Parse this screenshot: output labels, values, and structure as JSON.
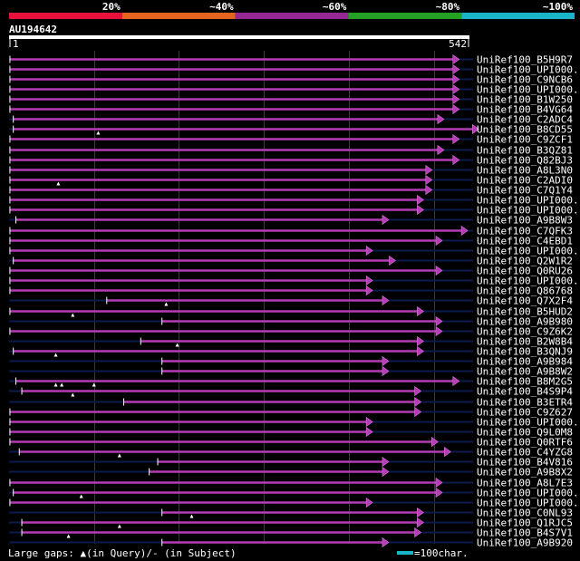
{
  "scale_labels": [
    "20%",
    "~40%",
    "~60%",
    "~80%",
    "~100%"
  ],
  "scale_colors": [
    "#e8103c",
    "#e2641e",
    "#962896",
    "#24a024",
    "#1ab4c8"
  ],
  "query": {
    "id": "AU194642",
    "start": "1",
    "end": "542",
    "length": 542
  },
  "hits": [
    {
      "name": "UniRef100_B5H9R7",
      "start": 1,
      "end": 530,
      "gaps": []
    },
    {
      "name": "UniRef100_UPI000...",
      "start": 1,
      "end": 530,
      "gaps": []
    },
    {
      "name": "UniRef100_C9NCB6",
      "start": 1,
      "end": 530,
      "gaps": []
    },
    {
      "name": "UniRef100_UPI000...",
      "start": 1,
      "end": 530,
      "gaps": []
    },
    {
      "name": "UniRef100_B1W250",
      "start": 1,
      "end": 530,
      "gaps": []
    },
    {
      "name": "UniRef100_B4VG64",
      "start": 1,
      "end": 530,
      "gaps": []
    },
    {
      "name": "UniRef100_C2ADC4",
      "start": 5,
      "end": 512,
      "gaps": []
    },
    {
      "name": "UniRef100_B8CD55",
      "start": 5,
      "end": 553,
      "gaps": [
        105
      ]
    },
    {
      "name": "UniRef100_C9ZCF1",
      "start": 1,
      "end": 530,
      "gaps": []
    },
    {
      "name": "UniRef100_B3QZ81",
      "start": 1,
      "end": 512,
      "gaps": []
    },
    {
      "name": "UniRef100_Q82BJ3",
      "start": 1,
      "end": 530,
      "gaps": []
    },
    {
      "name": "UniRef100_A8L3N0",
      "start": 1,
      "end": 498,
      "gaps": []
    },
    {
      "name": "UniRef100_C2ADI0",
      "start": 1,
      "end": 498,
      "gaps": [
        58
      ]
    },
    {
      "name": "UniRef100_C7Q1Y4",
      "start": 1,
      "end": 498,
      "gaps": []
    },
    {
      "name": "UniRef100_UPI000...",
      "start": 1,
      "end": 488,
      "gaps": []
    },
    {
      "name": "UniRef100_UPI000...",
      "start": 1,
      "end": 488,
      "gaps": []
    },
    {
      "name": "UniRef100_A9B8W3",
      "start": 8,
      "end": 447,
      "gaps": []
    },
    {
      "name": "UniRef100_C7QFK3",
      "start": 1,
      "end": 540,
      "gaps": []
    },
    {
      "name": "UniRef100_C4EBD1",
      "start": 1,
      "end": 510,
      "gaps": []
    },
    {
      "name": "UniRef100_UPI000...",
      "start": 1,
      "end": 428,
      "gaps": []
    },
    {
      "name": "UniRef100_Q2W1R2",
      "start": 5,
      "end": 455,
      "gaps": []
    },
    {
      "name": "UniRef100_Q0RU26",
      "start": 1,
      "end": 510,
      "gaps": []
    },
    {
      "name": "UniRef100_UPI000...",
      "start": 1,
      "end": 428,
      "gaps": []
    },
    {
      "name": "UniRef100_Q86768",
      "start": 1,
      "end": 428,
      "gaps": []
    },
    {
      "name": "UniRef100_Q7X2F4",
      "start": 115,
      "end": 447,
      "gaps": [
        185
      ]
    },
    {
      "name": "UniRef100_B5HUD2",
      "start": 1,
      "end": 488,
      "gaps": [
        75
      ]
    },
    {
      "name": "UniRef100_A9B980",
      "start": 180,
      "end": 510,
      "gaps": []
    },
    {
      "name": "UniRef100_C9Z6K2",
      "start": 1,
      "end": 510,
      "gaps": []
    },
    {
      "name": "UniRef100_B2W8B4",
      "start": 155,
      "end": 488,
      "gaps": [
        198
      ]
    },
    {
      "name": "UniRef100_B3QNJ9",
      "start": 5,
      "end": 488,
      "gaps": [
        55
      ]
    },
    {
      "name": "UniRef100_A9B984",
      "start": 180,
      "end": 447,
      "gaps": []
    },
    {
      "name": "UniRef100_A9B8W2",
      "start": 180,
      "end": 447,
      "gaps": []
    },
    {
      "name": "UniRef100_B8M2G5",
      "start": 8,
      "end": 530,
      "gaps": [
        55,
        62,
        100
      ]
    },
    {
      "name": "UniRef100_B4S9P4",
      "start": 15,
      "end": 485,
      "gaps": [
        75
      ]
    },
    {
      "name": "UniRef100_B3ETR4",
      "start": 135,
      "end": 485,
      "gaps": []
    },
    {
      "name": "UniRef100_C9Z627",
      "start": 1,
      "end": 485,
      "gaps": []
    },
    {
      "name": "UniRef100_UPI000...",
      "start": 1,
      "end": 428,
      "gaps": []
    },
    {
      "name": "UniRef100_Q9L0M8",
      "start": 1,
      "end": 428,
      "gaps": []
    },
    {
      "name": "UniRef100_Q0RTF6",
      "start": 1,
      "end": 505,
      "gaps": []
    },
    {
      "name": "UniRef100_C4YZG8",
      "start": 12,
      "end": 520,
      "gaps": [
        130
      ]
    },
    {
      "name": "UniRef100_B4V816",
      "start": 175,
      "end": 447,
      "gaps": []
    },
    {
      "name": "UniRef100_A9B8X2",
      "start": 165,
      "end": 447,
      "gaps": []
    },
    {
      "name": "UniRef100_A8L7E3",
      "start": 1,
      "end": 510,
      "gaps": []
    },
    {
      "name": "UniRef100_UPI000...",
      "start": 5,
      "end": 510,
      "gaps": [
        85
      ]
    },
    {
      "name": "UniRef100_UPI000...",
      "start": 1,
      "end": 428,
      "gaps": []
    },
    {
      "name": "UniRef100_C0NL93",
      "start": 180,
      "end": 488,
      "gaps": [
        215
      ]
    },
    {
      "name": "UniRef100_Q1RJC5",
      "start": 15,
      "end": 488,
      "gaps": [
        130
      ]
    },
    {
      "name": "UniRef100_B4S7V1",
      "start": 15,
      "end": 485,
      "gaps": [
        70
      ]
    },
    {
      "name": "UniRef100_A9B920",
      "start": 180,
      "end": 447,
      "gaps": []
    }
  ],
  "legend": {
    "gaps_text": "Large gaps: ▲(in Query)/- (in Subject)",
    "scale_text": "=100char."
  }
}
